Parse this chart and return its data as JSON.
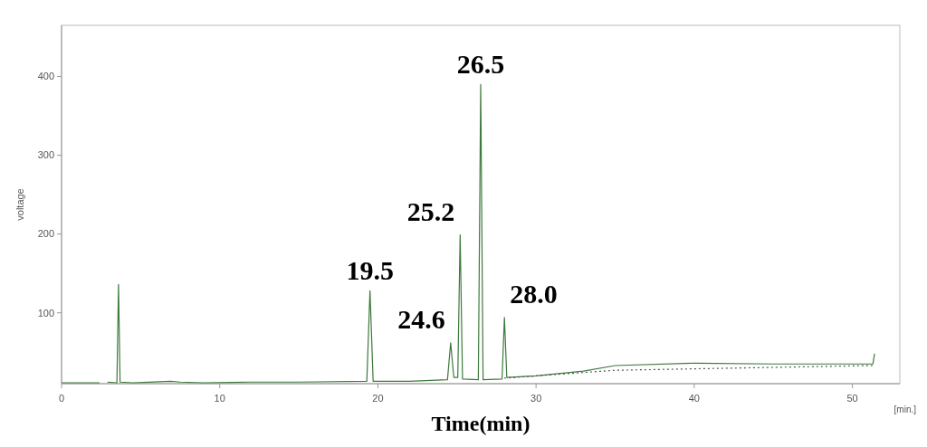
{
  "chart_data": {
    "type": "line",
    "xlabel": "Time(min)",
    "ylabel": "voltage",
    "xlim": [
      0,
      53
    ],
    "xticks": [
      0,
      10,
      20,
      30,
      40,
      50
    ],
    "ylim": [
      10,
      465
    ],
    "yticks": [
      100,
      200,
      300,
      400
    ],
    "grid": false,
    "series": [
      {
        "color": "#3d7a3d",
        "line_style": "solid",
        "x": [
          0,
          2.4,
          2.55,
          2.75,
          2.9,
          3.5,
          3.6,
          3.7,
          4.5,
          6.9,
          7.5,
          9,
          12,
          15,
          19.3,
          19.5,
          19.7,
          22,
          24.4,
          24.6,
          24.8,
          25.05,
          25.2,
          25.35,
          26.35,
          26.5,
          26.65,
          27.85,
          28.0,
          28.15,
          30,
          33,
          35,
          40,
          45,
          51.3,
          51.4
        ],
        "values": [
          11,
          11,
          null,
          null,
          12,
          11,
          136,
          12,
          11,
          13,
          12,
          11,
          12,
          12,
          13,
          128,
          13,
          13,
          15,
          62,
          18,
          18,
          199,
          16,
          15,
          390,
          15,
          16,
          94,
          18,
          20,
          26,
          33,
          36,
          35,
          35,
          48
        ]
      },
      {
        "color": "#555555",
        "line_style": "dotted",
        "x": [
          28,
          35,
          51.3
        ],
        "values": [
          17,
          27,
          33
        ]
      }
    ],
    "annotations": [
      {
        "text": "19.5",
        "x": 19.5,
        "y": 128
      },
      {
        "text": "24.6",
        "x": 24.6,
        "y": 62
      },
      {
        "text": "25.2",
        "x": 25.2,
        "y": 199
      },
      {
        "text": "26.5",
        "x": 26.5,
        "y": 390
      },
      {
        "text": "28.0",
        "x": 28.0,
        "y": 94
      },
      "[min.]"
    ]
  }
}
